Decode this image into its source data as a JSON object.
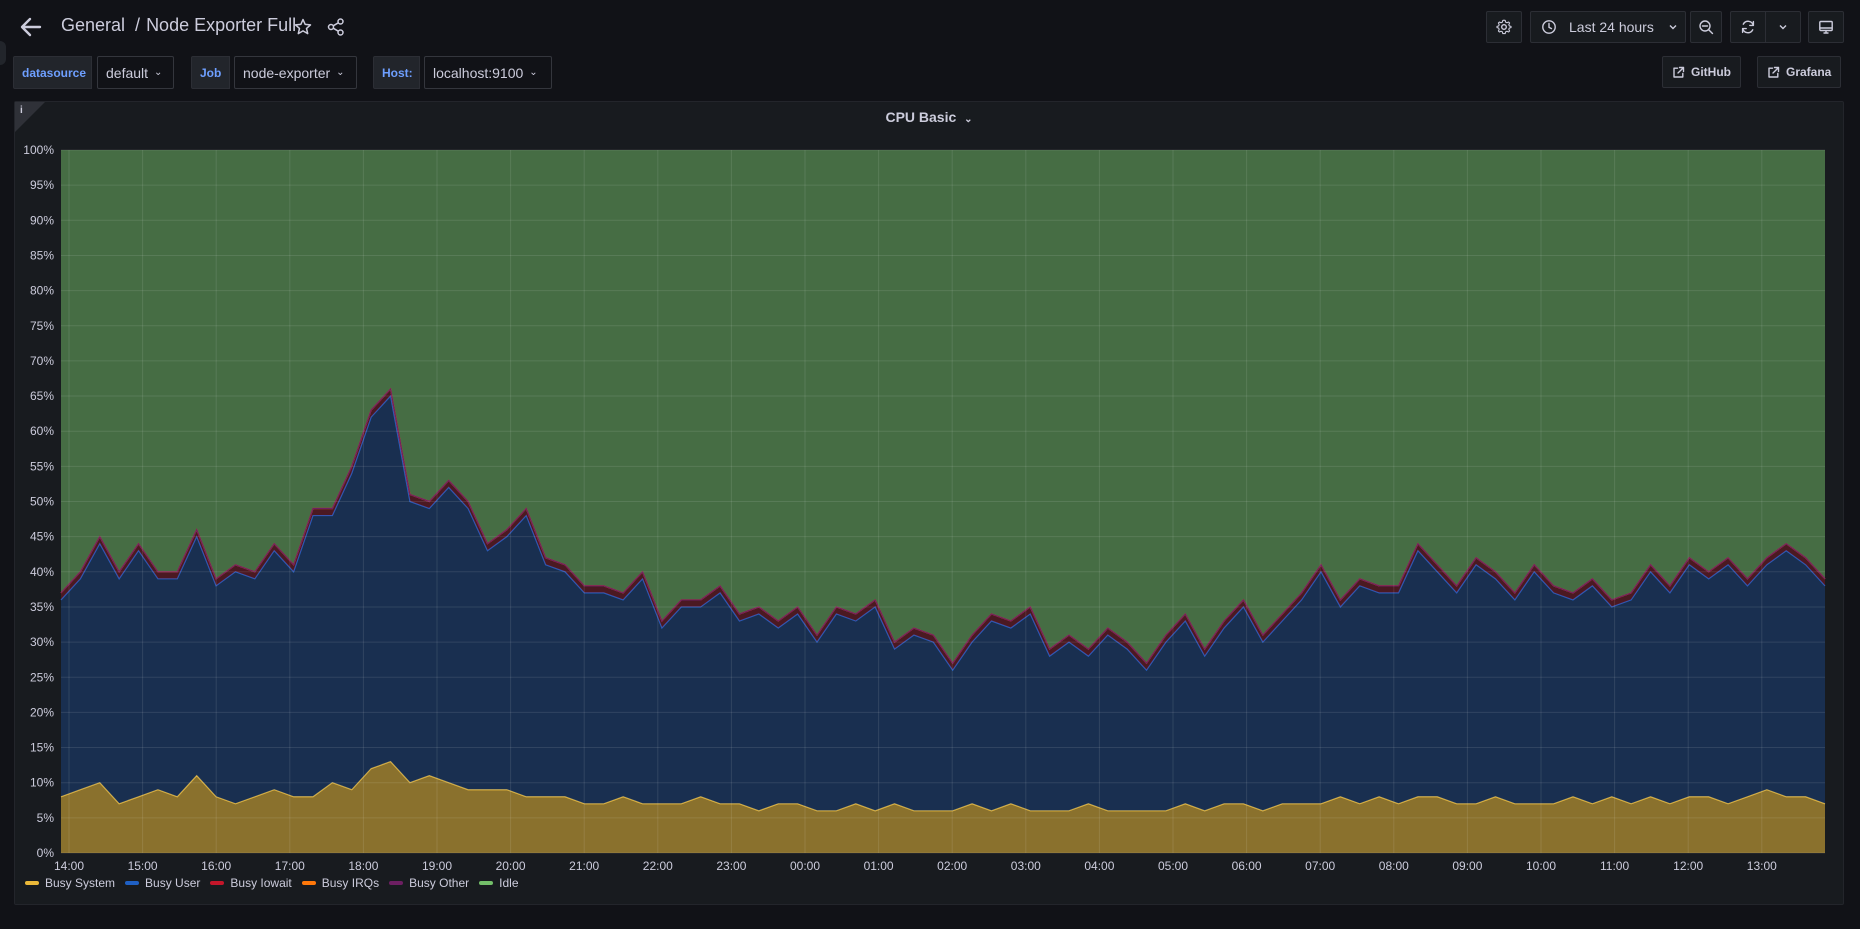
{
  "header": {
    "breadcrumb_folder": "General",
    "breadcrumb_separator": "/",
    "dashboard_title": "Node Exporter Full",
    "time_range": "Last 24 hours"
  },
  "variables": [
    {
      "label": "datasource",
      "value": "default"
    },
    {
      "label": "Job",
      "value": "node-exporter"
    },
    {
      "label": "Host:",
      "value": "localhost:9100"
    }
  ],
  "links": [
    {
      "label": "GitHub"
    },
    {
      "label": "Grafana"
    }
  ],
  "panel": {
    "info_glyph": "i",
    "title": "CPU Basic"
  },
  "colors": {
    "busy_system": "#eab839",
    "busy_user": "#1f60c4",
    "busy_iowait": "#c4162a",
    "busy_irqs": "#ff780a",
    "busy_other": "#6d1f62",
    "idle": "#73bf69",
    "background": "#111217",
    "panel": "#181b1f",
    "accent": "#6e9fff"
  },
  "chart_data": {
    "type": "area",
    "stacked": true,
    "title": "CPU Basic",
    "y_ticks": [
      "0%",
      "5%",
      "10%",
      "15%",
      "20%",
      "25%",
      "30%",
      "35%",
      "40%",
      "45%",
      "50%",
      "55%",
      "60%",
      "65%",
      "70%",
      "75%",
      "80%",
      "85%",
      "90%",
      "95%",
      "100%"
    ],
    "ylim": [
      0,
      100
    ],
    "x_ticks": [
      "14:00",
      "15:00",
      "16:00",
      "17:00",
      "18:00",
      "19:00",
      "20:00",
      "21:00",
      "22:00",
      "23:00",
      "00:00",
      "01:00",
      "02:00",
      "03:00",
      "04:00",
      "05:00",
      "06:00",
      "07:00",
      "08:00",
      "09:00",
      "10:00",
      "11:00",
      "12:00",
      "13:00"
    ],
    "grid": true,
    "legend_position": "bottom-left",
    "series": [
      {
        "name": "Busy System",
        "color": "#eab839",
        "values": [
          8,
          9,
          10,
          7,
          8,
          9,
          8,
          11,
          8,
          7,
          8,
          9,
          8,
          8,
          10,
          9,
          12,
          13,
          10,
          11,
          10,
          9,
          9,
          9,
          8,
          8,
          8,
          7,
          7,
          8,
          7,
          7,
          7,
          8,
          7,
          7,
          6,
          7,
          7,
          6,
          6,
          7,
          6,
          7,
          6,
          6,
          6,
          7,
          6,
          7,
          6,
          6,
          6,
          7,
          6,
          6,
          6,
          6,
          7,
          6,
          7,
          7,
          6,
          7,
          7,
          7,
          8,
          7,
          8,
          7,
          8,
          8,
          7,
          7,
          8,
          7,
          7,
          7,
          8,
          7,
          8,
          7,
          8,
          7,
          8,
          8,
          7,
          8,
          9,
          8,
          8,
          7
        ]
      },
      {
        "name": "Busy User",
        "color": "#1f60c4",
        "values": [
          28,
          30,
          34,
          32,
          35,
          30,
          31,
          34,
          30,
          33,
          31,
          34,
          32,
          40,
          38,
          45,
          50,
          52,
          40,
          38,
          42,
          40,
          34,
          36,
          40,
          33,
          32,
          30,
          30,
          28,
          32,
          25,
          28,
          27,
          30,
          26,
          28,
          25,
          27,
          24,
          28,
          26,
          29,
          22,
          25,
          24,
          20,
          23,
          27,
          25,
          28,
          22,
          24,
          21,
          25,
          23,
          20,
          24,
          26,
          22,
          25,
          28,
          24,
          26,
          29,
          33,
          27,
          31,
          29,
          30,
          35,
          32,
          30,
          34,
          31,
          29,
          33,
          30,
          28,
          31,
          27,
          29,
          32,
          30,
          33,
          31,
          34,
          30,
          32,
          35,
          33,
          31
        ]
      },
      {
        "name": "Busy Iowait",
        "color": "#c4162a",
        "values": [
          1,
          1,
          1,
          1,
          1,
          1,
          1,
          1,
          1,
          1,
          1,
          1,
          1,
          1,
          1,
          1,
          1,
          1,
          1,
          1,
          1,
          1,
          1,
          1,
          1,
          1,
          1,
          1,
          1,
          1,
          1,
          1,
          1,
          1,
          1,
          1,
          1,
          1,
          1,
          1,
          1,
          1,
          1,
          1,
          1,
          1,
          1,
          1,
          1,
          1,
          1,
          1,
          1,
          1,
          1,
          1,
          1,
          1,
          1,
          1,
          1,
          1,
          1,
          1,
          1,
          1,
          1,
          1,
          1,
          1,
          1,
          1,
          1,
          1,
          1,
          1,
          1,
          1,
          1,
          1,
          1,
          1,
          1,
          1,
          1,
          1,
          1,
          1,
          1,
          1,
          1,
          1
        ]
      },
      {
        "name": "Busy IRQs",
        "color": "#ff780a",
        "values": [
          0,
          0,
          0,
          0,
          0,
          0,
          0,
          0,
          0,
          0,
          0,
          0,
          0,
          0,
          0,
          0,
          0,
          0,
          0,
          0,
          0,
          0,
          0,
          0,
          0,
          0,
          0,
          0,
          0,
          0,
          0,
          0,
          0,
          0,
          0,
          0,
          0,
          0,
          0,
          0,
          0,
          0,
          0,
          0,
          0,
          0,
          0,
          0,
          0,
          0,
          0,
          0,
          0,
          0,
          0,
          0,
          0,
          0,
          0,
          0,
          0,
          0,
          0,
          0,
          0,
          0,
          0,
          0,
          0,
          0,
          0,
          0,
          0,
          0,
          0,
          0,
          0,
          0,
          0,
          0,
          0,
          0,
          0,
          0,
          0,
          0,
          0,
          0,
          0,
          0,
          0,
          0
        ]
      },
      {
        "name": "Busy Other",
        "color": "#6d1f62",
        "values": [
          0,
          0,
          0,
          0,
          0,
          0,
          0,
          0,
          0,
          0,
          0,
          0,
          0,
          0,
          0,
          0,
          0,
          0,
          0,
          0,
          0,
          0,
          0,
          0,
          0,
          0,
          0,
          0,
          0,
          0,
          0,
          0,
          0,
          0,
          0,
          0,
          0,
          0,
          0,
          0,
          0,
          0,
          0,
          0,
          0,
          0,
          0,
          0,
          0,
          0,
          0,
          0,
          0,
          0,
          0,
          0,
          0,
          0,
          0,
          0,
          0,
          0,
          0,
          0,
          0,
          0,
          0,
          0,
          0,
          0,
          0,
          0,
          0,
          0,
          0,
          0,
          0,
          0,
          0,
          0,
          0,
          0,
          0,
          0,
          0,
          0,
          0,
          0,
          0,
          0,
          0,
          0
        ]
      },
      {
        "name": "Idle",
        "color": "#73bf69",
        "fills_to": 100
      }
    ]
  }
}
